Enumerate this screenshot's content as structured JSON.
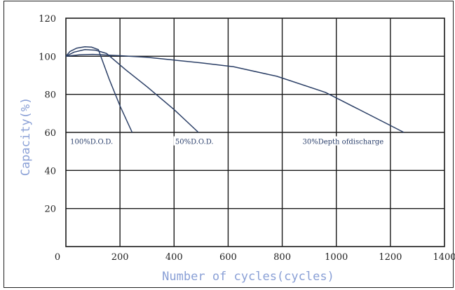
{
  "chart_data": {
    "type": "line",
    "xlabel": "Number of cycles(cycles)",
    "ylabel": "Capacity(%)",
    "xlim": [
      0,
      1400
    ],
    "ylim": [
      0,
      120
    ],
    "x_ticks": [
      0,
      200,
      400,
      600,
      800,
      1000,
      1200,
      1400
    ],
    "y_ticks": [
      20,
      40,
      60,
      80,
      100,
      120
    ],
    "grid": true,
    "series": [
      {
        "name": "100%D.O.D.",
        "color": "#2b3f66",
        "points": [
          [
            0,
            100
          ],
          [
            15,
            102.5
          ],
          [
            40,
            104.3
          ],
          [
            70,
            105
          ],
          [
            95,
            104.8
          ],
          [
            120,
            103.5
          ],
          [
            160,
            88
          ],
          [
            200,
            74
          ],
          [
            245,
            60
          ]
        ]
      },
      {
        "name": "50%D.O.D.",
        "color": "#2b3f66",
        "points": [
          [
            0,
            100
          ],
          [
            30,
            102.2
          ],
          [
            70,
            103.5
          ],
          [
            110,
            103.2
          ],
          [
            150,
            101.5
          ],
          [
            220,
            93
          ],
          [
            300,
            84
          ],
          [
            400,
            72
          ],
          [
            490,
            60
          ]
        ]
      },
      {
        "name": "30%Depth ofdischarge",
        "color": "#2b3f66",
        "points": [
          [
            0,
            100
          ],
          [
            50,
            100.8
          ],
          [
            100,
            101
          ],
          [
            200,
            100.3
          ],
          [
            300,
            99.5
          ],
          [
            400,
            98
          ],
          [
            500,
            96.5
          ],
          [
            620,
            94.5
          ],
          [
            780,
            89.5
          ],
          [
            960,
            81
          ],
          [
            1250,
            60
          ]
        ]
      }
    ],
    "annotations": [
      {
        "text": "100%D.O.D.",
        "x": 95,
        "y": 55
      },
      {
        "text": "50%D.O.D.",
        "x": 475,
        "y": 55
      },
      {
        "text": "30%Depth ofdischarge",
        "x": 1025,
        "y": 55
      }
    ]
  }
}
